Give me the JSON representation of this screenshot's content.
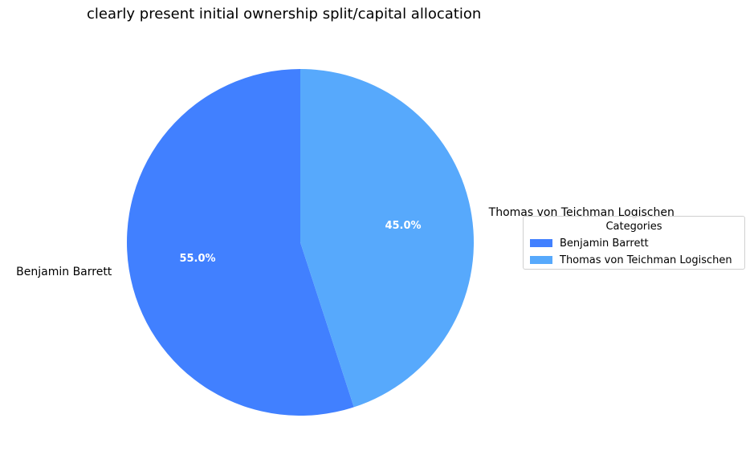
{
  "chart_data": {
    "type": "pie",
    "title": "clearly present initial ownership split/capital allocation",
    "categories": [
      "Benjamin Barrett",
      "Thomas von Teichman Logischen"
    ],
    "values": [
      55.0,
      45.0
    ],
    "percent_labels": [
      "55.0%",
      "45.0%"
    ],
    "colors": [
      "#4180FF",
      "#57A9FC"
    ],
    "start_angle_deg": 90,
    "direction": "counterclockwise",
    "legend": {
      "title": "Categories",
      "placement": "center-right",
      "entries": [
        "Benjamin Barrett",
        "Thomas von Teichman Logischen"
      ]
    }
  }
}
